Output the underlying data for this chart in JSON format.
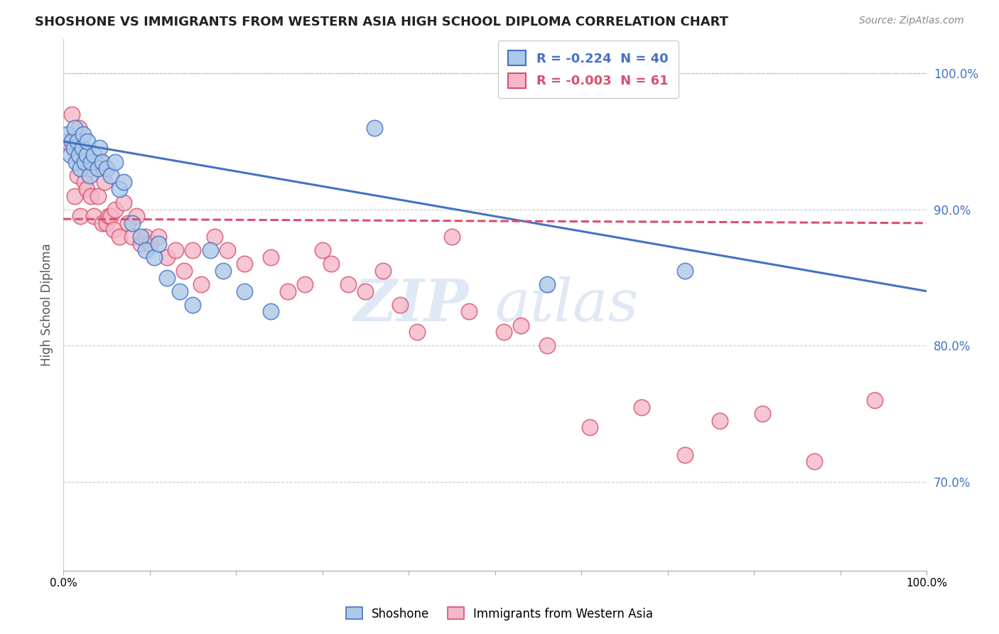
{
  "title": "SHOSHONE VS IMMIGRANTS FROM WESTERN ASIA HIGH SCHOOL DIPLOMA CORRELATION CHART",
  "source": "Source: ZipAtlas.com",
  "ylabel": "High School Diploma",
  "legend_label1": "Shoshone",
  "legend_label2": "Immigrants from Western Asia",
  "R1": -0.224,
  "N1": 40,
  "R2": -0.003,
  "N2": 61,
  "watermark_zip": "ZIP",
  "watermark_atlas": "atlas",
  "xlim": [
    0.0,
    1.0
  ],
  "ylim": [
    0.635,
    1.025
  ],
  "yticks": [
    0.7,
    0.8,
    0.9,
    1.0
  ],
  "ytick_labels": [
    "70.0%",
    "80.0%",
    "90.0%",
    "100.0%"
  ],
  "color_shoshone": "#adc9e8",
  "color_immigrants": "#f5b8c8",
  "line_color_shoshone": "#4472c4",
  "line_color_immigrants": "#d94f6e",
  "background_color": "#ffffff",
  "shoshone_x": [
    0.005,
    0.008,
    0.01,
    0.012,
    0.013,
    0.015,
    0.016,
    0.018,
    0.02,
    0.022,
    0.023,
    0.025,
    0.027,
    0.028,
    0.03,
    0.032,
    0.035,
    0.04,
    0.042,
    0.045,
    0.05,
    0.055,
    0.06,
    0.065,
    0.07,
    0.08,
    0.09,
    0.095,
    0.105,
    0.11,
    0.12,
    0.135,
    0.15,
    0.17,
    0.185,
    0.21,
    0.24,
    0.36,
    0.56,
    0.72
  ],
  "shoshone_y": [
    0.955,
    0.94,
    0.95,
    0.945,
    0.96,
    0.935,
    0.95,
    0.94,
    0.93,
    0.945,
    0.955,
    0.935,
    0.94,
    0.95,
    0.925,
    0.935,
    0.94,
    0.93,
    0.945,
    0.935,
    0.93,
    0.925,
    0.935,
    0.915,
    0.92,
    0.89,
    0.88,
    0.87,
    0.865,
    0.875,
    0.85,
    0.84,
    0.83,
    0.87,
    0.855,
    0.84,
    0.825,
    0.96,
    0.845,
    0.855
  ],
  "immigrants_x": [
    0.005,
    0.01,
    0.013,
    0.016,
    0.018,
    0.02,
    0.022,
    0.025,
    0.027,
    0.03,
    0.032,
    0.035,
    0.038,
    0.04,
    0.043,
    0.045,
    0.048,
    0.05,
    0.053,
    0.055,
    0.058,
    0.06,
    0.065,
    0.07,
    0.075,
    0.08,
    0.085,
    0.09,
    0.095,
    0.1,
    0.11,
    0.12,
    0.13,
    0.14,
    0.15,
    0.16,
    0.175,
    0.19,
    0.21,
    0.24,
    0.26,
    0.28,
    0.3,
    0.31,
    0.33,
    0.35,
    0.37,
    0.39,
    0.41,
    0.45,
    0.47,
    0.51,
    0.53,
    0.56,
    0.61,
    0.67,
    0.72,
    0.76,
    0.81,
    0.87,
    0.94
  ],
  "immigrants_y": [
    0.95,
    0.97,
    0.91,
    0.925,
    0.96,
    0.895,
    0.94,
    0.92,
    0.915,
    0.93,
    0.91,
    0.895,
    0.935,
    0.91,
    0.935,
    0.89,
    0.92,
    0.89,
    0.895,
    0.895,
    0.885,
    0.9,
    0.88,
    0.905,
    0.89,
    0.88,
    0.895,
    0.875,
    0.88,
    0.875,
    0.88,
    0.865,
    0.87,
    0.855,
    0.87,
    0.845,
    0.88,
    0.87,
    0.86,
    0.865,
    0.84,
    0.845,
    0.87,
    0.86,
    0.845,
    0.84,
    0.855,
    0.83,
    0.81,
    0.88,
    0.825,
    0.81,
    0.815,
    0.8,
    0.74,
    0.755,
    0.72,
    0.745,
    0.75,
    0.715,
    0.76
  ],
  "shoshone_trendline": [
    0.95,
    0.84
  ],
  "immigrants_trendline": [
    0.893,
    0.89
  ]
}
